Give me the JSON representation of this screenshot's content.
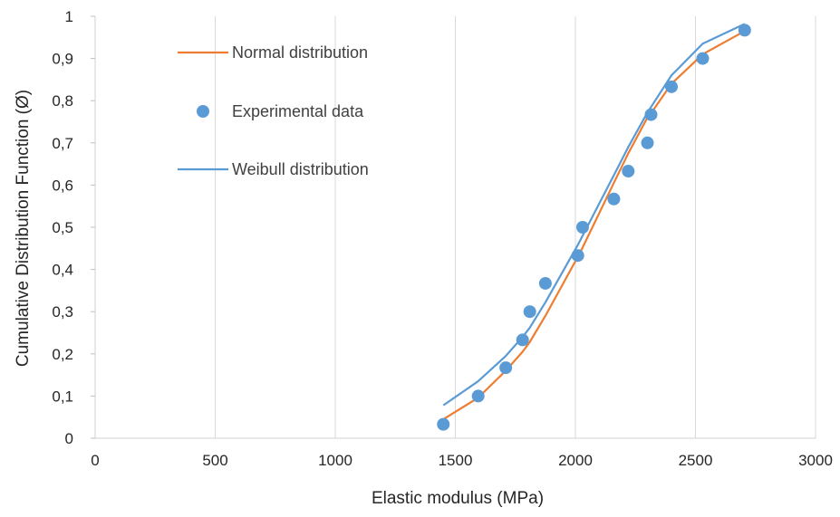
{
  "chart_data": {
    "type": "scatter",
    "title": "",
    "xlabel": "Elastic modulus (MPa)",
    "ylabel": "Cumulative Distribution Function (Ø)",
    "xlim": [
      0,
      3000
    ],
    "ylim": [
      0,
      1
    ],
    "x_ticks": [
      0,
      500,
      1000,
      1500,
      2000,
      2500,
      3000
    ],
    "x_tick_labels": [
      "0",
      "500",
      "1000",
      "1500",
      "2000",
      "2500",
      "3000"
    ],
    "y_ticks": [
      0,
      0.1,
      0.2,
      0.3,
      0.4,
      0.5,
      0.6,
      0.7,
      0.8,
      0.9,
      1
    ],
    "y_tick_labels": [
      "0",
      "0,1",
      "0,2",
      "0,3",
      "0,4",
      "0,5",
      "0,6",
      "0,7",
      "0,8",
      "0,9",
      "1"
    ],
    "grid": "vertical",
    "legend_position": "top-left",
    "series": [
      {
        "name": "Normal distribution",
        "kind": "line",
        "color": "#ED7D31",
        "x": [
          1450,
          1595,
          1710,
          1780,
          1810,
          1875,
          2010,
          2030,
          2160,
          2220,
          2300,
          2315,
          2400,
          2530,
          2705
        ],
        "y": [
          0.045,
          0.096,
          0.16,
          0.205,
          0.228,
          0.29,
          0.43,
          0.452,
          0.605,
          0.675,
          0.76,
          0.77,
          0.84,
          0.91,
          0.965
        ]
      },
      {
        "name": "Experimental data",
        "kind": "scatter",
        "color": "#5B9BD5",
        "x": [
          1450,
          1595,
          1710,
          1780,
          1810,
          1875,
          2010,
          2030,
          2160,
          2220,
          2300,
          2315,
          2400,
          2530,
          2705
        ],
        "y": [
          0.033,
          0.1,
          0.167,
          0.233,
          0.3,
          0.367,
          0.433,
          0.5,
          0.567,
          0.633,
          0.7,
          0.767,
          0.833,
          0.9,
          0.967
        ]
      },
      {
        "name": "Weibull distribution",
        "kind": "line",
        "color": "#5B9BD5",
        "x": [
          1450,
          1595,
          1710,
          1780,
          1810,
          1875,
          2010,
          2030,
          2160,
          2220,
          2300,
          2315,
          2400,
          2530,
          2705
        ],
        "y": [
          0.078,
          0.135,
          0.195,
          0.24,
          0.262,
          0.322,
          0.458,
          0.48,
          0.623,
          0.69,
          0.772,
          0.785,
          0.86,
          0.935,
          0.982
        ]
      }
    ]
  }
}
